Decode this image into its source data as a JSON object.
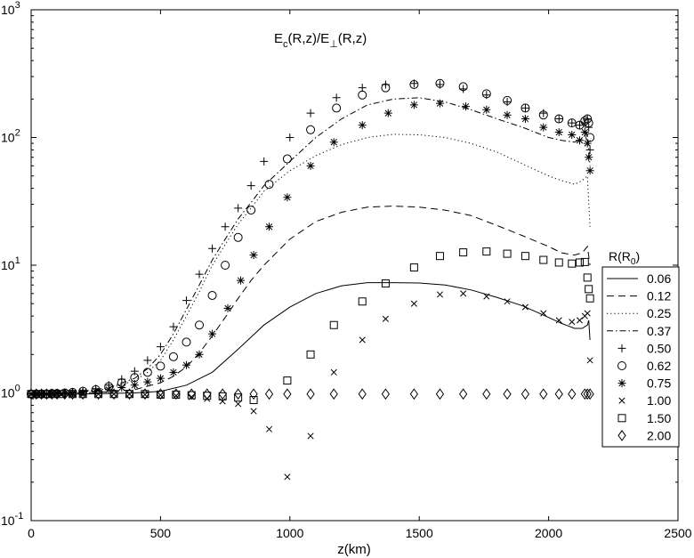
{
  "chart_data": {
    "type": "line",
    "title_main": "E",
    "title_sub1": "c",
    "title_mid": "(R,z)/E",
    "title_sub2": "⊥",
    "title_end": "(R,z)",
    "xlabel": "z(km)",
    "ylabel": "",
    "xlim": [
      0,
      2500
    ],
    "ylim": [
      0.1,
      1000
    ],
    "yscale": "log",
    "grid": false,
    "x_ticks": [
      0,
      500,
      1000,
      1500,
      2000,
      2500
    ],
    "y_ticks": [
      {
        "base": "10",
        "exp": "-1",
        "value": 0.1
      },
      {
        "base": "10",
        "exp": "0",
        "value": 1
      },
      {
        "base": "10",
        "exp": "1",
        "value": 10
      },
      {
        "base": "10",
        "exp": "2",
        "value": 100
      },
      {
        "base": "10",
        "exp": "3",
        "value": 1000
      }
    ],
    "legend_title_main": "R(R",
    "legend_title_sub": "0",
    "legend_title_end": ")",
    "legend_position": "right",
    "series": [
      {
        "name": "0.06",
        "style": "solid",
        "x": [
          0,
          100,
          200,
          300,
          400,
          500,
          600,
          700,
          800,
          900,
          1000,
          1100,
          1200,
          1300,
          1400,
          1500,
          1600,
          1700,
          1800,
          1900,
          2000,
          2050,
          2100,
          2130,
          2150,
          2155,
          2160
        ],
        "y": [
          0.97,
          0.98,
          0.98,
          0.99,
          1.0,
          1.03,
          1.15,
          1.45,
          2.2,
          3.4,
          4.7,
          6.0,
          6.9,
          7.3,
          7.3,
          7.25,
          7.0,
          6.4,
          5.6,
          4.8,
          3.9,
          3.5,
          3.2,
          3.2,
          3.4,
          3.7,
          2.6
        ]
      },
      {
        "name": "0.12",
        "style": "dash",
        "x": [
          0,
          100,
          200,
          300,
          400,
          500,
          550,
          600,
          650,
          700,
          750,
          800,
          850,
          900,
          1000,
          1100,
          1200,
          1300,
          1400,
          1500,
          1600,
          1700,
          1800,
          1900,
          2000,
          2050,
          2100,
          2130,
          2150,
          2160
        ],
        "y": [
          0.97,
          0.99,
          1.0,
          1.02,
          1.06,
          1.2,
          1.35,
          1.6,
          2.05,
          2.8,
          3.9,
          5.5,
          7.6,
          10,
          16,
          22,
          26,
          28.5,
          29,
          28.5,
          27,
          24.5,
          20.5,
          17,
          14,
          12.5,
          12,
          12.5,
          14,
          10
        ]
      },
      {
        "name": "0.25",
        "style": "dot",
        "x": [
          0,
          100,
          200,
          300,
          400,
          450,
          500,
          550,
          600,
          650,
          700,
          750,
          800,
          850,
          900,
          1000,
          1100,
          1200,
          1300,
          1400,
          1500,
          1600,
          1700,
          1800,
          1900,
          2000,
          2050,
          2100,
          2130,
          2150,
          2160
        ],
        "y": [
          0.97,
          0.99,
          1.02,
          1.08,
          1.25,
          1.45,
          1.8,
          2.6,
          4.0,
          6.2,
          10,
          14.5,
          21,
          28,
          38,
          55,
          72,
          88,
          100,
          106,
          105,
          100,
          90,
          77,
          62,
          50,
          46,
          43,
          46,
          50,
          20
        ]
      },
      {
        "name": "0.37",
        "style": "dashdot",
        "x": [
          0,
          100,
          200,
          300,
          400,
          450,
          500,
          550,
          600,
          650,
          700,
          750,
          800,
          850,
          900,
          1000,
          1100,
          1200,
          1300,
          1400,
          1500,
          1600,
          1700,
          1800,
          1900,
          2000,
          2050,
          2100,
          2130,
          2150,
          2160
        ],
        "y": [
          0.97,
          0.99,
          1.03,
          1.1,
          1.3,
          1.55,
          2.0,
          2.9,
          4.5,
          7.0,
          11,
          16,
          23,
          31,
          42,
          65,
          100,
          140,
          180,
          200,
          205,
          190,
          165,
          140,
          120,
          100,
          95,
          92,
          98,
          110,
          60
        ]
      },
      {
        "name": "0.50",
        "style": "marker-plus",
        "x": [
          0,
          20,
          40,
          60,
          80,
          100,
          130,
          160,
          200,
          250,
          300,
          350,
          400,
          450,
          500,
          550,
          600,
          650,
          700,
          750,
          800,
          850,
          900,
          1000,
          1080,
          1180,
          1280,
          1370,
          1480,
          1580,
          1670,
          1760,
          1840,
          1910,
          1980,
          2040,
          2090,
          2120,
          2140,
          2150,
          2155,
          2160
        ],
        "y": [
          0.98,
          0.98,
          0.98,
          0.98,
          0.99,
          0.99,
          1.0,
          1.01,
          1.04,
          1.08,
          1.15,
          1.28,
          1.48,
          1.8,
          2.3,
          3.3,
          5.3,
          8.5,
          13.5,
          20,
          28,
          42,
          65,
          100,
          155,
          205,
          245,
          260,
          265,
          260,
          240,
          215,
          190,
          170,
          155,
          140,
          130,
          125,
          130,
          140,
          120,
          80
        ]
      },
      {
        "name": "0.62",
        "style": "marker-circle",
        "x": [
          0,
          20,
          40,
          60,
          80,
          100,
          130,
          160,
          200,
          250,
          300,
          350,
          400,
          450,
          500,
          550,
          600,
          650,
          700,
          750,
          800,
          850,
          920,
          990,
          1080,
          1180,
          1280,
          1370,
          1480,
          1580,
          1670,
          1760,
          1840,
          1910,
          1980,
          2040,
          2090,
          2120,
          2140,
          2150,
          2155,
          2160
        ],
        "y": [
          0.98,
          0.98,
          0.98,
          0.98,
          0.99,
          0.99,
          1.0,
          1.01,
          1.03,
          1.06,
          1.12,
          1.2,
          1.32,
          1.45,
          1.62,
          1.92,
          2.5,
          3.4,
          5.8,
          10,
          16.5,
          27,
          43,
          68,
          115,
          170,
          215,
          245,
          260,
          265,
          250,
          220,
          195,
          170,
          150,
          140,
          130,
          125,
          135,
          140,
          130,
          100
        ]
      },
      {
        "name": "0.75",
        "style": "marker-star",
        "x": [
          0,
          20,
          40,
          60,
          80,
          100,
          130,
          160,
          200,
          250,
          300,
          350,
          400,
          450,
          500,
          550,
          600,
          650,
          700,
          760,
          810,
          860,
          920,
          990,
          1080,
          1170,
          1280,
          1380,
          1480,
          1580,
          1680,
          1760,
          1840,
          1910,
          1980,
          2040,
          2090,
          2120,
          2140,
          2150,
          2155,
          2160
        ],
        "y": [
          0.98,
          0.98,
          0.98,
          0.98,
          0.99,
          0.99,
          1.0,
          1.0,
          1.01,
          1.03,
          1.06,
          1.1,
          1.15,
          1.22,
          1.3,
          1.45,
          1.65,
          2.0,
          2.9,
          4.6,
          7.6,
          12,
          20,
          34,
          60,
          92,
          125,
          155,
          180,
          185,
          175,
          165,
          150,
          140,
          120,
          110,
          105,
          95,
          110,
          90,
          70,
          55
        ]
      },
      {
        "name": "1.00",
        "style": "marker-x",
        "x": [
          0,
          30,
          60,
          90,
          120,
          160,
          200,
          260,
          320,
          380,
          440,
          500,
          560,
          620,
          680,
          740,
          800,
          860,
          920,
          990,
          1080,
          1170,
          1280,
          1370,
          1480,
          1580,
          1670,
          1760,
          1840,
          1910,
          1980,
          2040,
          2090,
          2120,
          2140,
          2150,
          2160
        ],
        "y": [
          0.98,
          0.98,
          0.98,
          0.98,
          0.98,
          0.98,
          0.98,
          0.98,
          0.98,
          0.98,
          0.97,
          0.96,
          0.95,
          0.93,
          0.9,
          0.86,
          0.82,
          0.72,
          0.52,
          0.22,
          0.46,
          1.45,
          2.6,
          3.8,
          5.0,
          5.9,
          6.0,
          5.7,
          5.2,
          4.7,
          4.2,
          3.7,
          3.6,
          3.7,
          4.0,
          4.2,
          1.8
        ]
      },
      {
        "name": "1.50",
        "style": "marker-square",
        "x": [
          0,
          30,
          60,
          90,
          120,
          160,
          200,
          260,
          320,
          380,
          440,
          500,
          560,
          620,
          680,
          740,
          800,
          860,
          990,
          1080,
          1170,
          1280,
          1370,
          1480,
          1580,
          1670,
          1760,
          1840,
          1910,
          1980,
          2040,
          2090,
          2120,
          2140,
          2150,
          2155,
          2160
        ],
        "y": [
          0.98,
          0.98,
          0.98,
          0.98,
          0.98,
          0.98,
          0.98,
          0.98,
          0.98,
          0.98,
          0.98,
          0.97,
          0.97,
          0.96,
          0.95,
          0.94,
          0.92,
          0.88,
          1.25,
          2.0,
          3.4,
          5.2,
          7.2,
          9.6,
          11.8,
          12.6,
          12.8,
          12.3,
          11.8,
          11.0,
          10.5,
          10.3,
          10.5,
          10.6,
          8.0,
          6.5,
          5.5
        ]
      },
      {
        "name": "2.00",
        "style": "marker-diamond",
        "x": [
          0,
          20,
          40,
          60,
          80,
          100,
          130,
          160,
          200,
          260,
          320,
          380,
          440,
          500,
          560,
          620,
          680,
          740,
          800,
          860,
          920,
          990,
          1080,
          1170,
          1280,
          1370,
          1480,
          1580,
          1670,
          1760,
          1840,
          1910,
          1980,
          2040,
          2090,
          2140,
          2150,
          2160
        ],
        "y": [
          0.98,
          0.98,
          0.98,
          0.98,
          0.98,
          0.98,
          0.98,
          0.98,
          0.98,
          0.98,
          0.98,
          0.98,
          0.98,
          0.98,
          0.98,
          0.98,
          0.98,
          0.98,
          0.98,
          0.98,
          0.98,
          0.98,
          0.98,
          0.98,
          0.98,
          0.98,
          0.98,
          0.98,
          0.98,
          0.98,
          0.98,
          0.98,
          0.98,
          0.98,
          0.98,
          0.98,
          0.98,
          0.98
        ]
      }
    ]
  }
}
